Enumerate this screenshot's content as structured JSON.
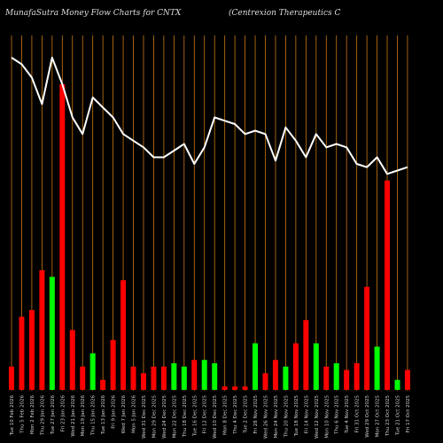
{
  "header": {
    "title_left": "MunafaSutra  Money Flow  Charts for CNTX",
    "title_right": "(Centrexion  Therapeutics C"
  },
  "chart_data": {
    "type": "bar",
    "title": "MunafaSutra  Money Flow  Charts for CNTX",
    "categories": [
      "Tue 10 Feb 2026",
      "Thu 5 Feb 2026",
      "Mon 2 Feb 2026",
      "Thu 29 Jan 2026",
      "Tue 27 Jan 2026",
      "Fri 23 Jan 2026",
      "Wed 21 Jan 2026",
      "Mon 19 Jan 2026",
      "Thu 15 Jan 2026",
      "Tue 13 Jan 2026",
      "Fri 9 Jan 2026",
      "Wed 7 Jan 2026",
      "Mon 5 Jan 2026",
      "Wed 31 Dec 2025",
      "Mon 29 Dec 2025",
      "Wed 24 Dec 2025",
      "Mon 22 Dec 2025",
      "Thu 18 Dec 2025",
      "Tue 16 Dec 2025",
      "Fri 12 Dec 2025",
      "Wed 10 Dec 2025",
      "Mon 8 Dec 2025",
      "Thu 4 Dec 2025",
      "Tue 2 Dec 2025",
      "Fri 28 Nov 2025",
      "Wed 26 Nov 2025",
      "Mon 24 Nov 2025",
      "Thu 20 Nov 2025",
      "Tue 18 Nov 2025",
      "Fri 14 Nov 2025",
      "Wed 12 Nov 2025",
      "Mon 10 Nov 2025",
      "Thu 6 Nov 2025",
      "Tue 4 Nov 2025",
      "Fri 31 Oct 2025",
      "Wed 29 Oct 2025",
      "Mon 27 Oct 2025",
      "Thu 23 Oct 2025",
      "Tue 21 Oct 2025",
      "Fri 17 Oct 2025"
    ],
    "series": [
      {
        "values": [
          7,
          22,
          24,
          36,
          34,
          92,
          18,
          7,
          11,
          3,
          15,
          33,
          7,
          5,
          7,
          7,
          8,
          7,
          9,
          9,
          8,
          1,
          1,
          1,
          14,
          5,
          9,
          7,
          14,
          21,
          14,
          7,
          8,
          6,
          8,
          31,
          13,
          63,
          3,
          6
        ],
        "colors": [
          "red",
          "red",
          "red",
          "red",
          "green",
          "red",
          "red",
          "red",
          "green",
          "red",
          "red",
          "red",
          "red",
          "red",
          "red",
          "red",
          "green",
          "green",
          "red",
          "green",
          "green",
          "red",
          "red",
          "red",
          "green",
          "red",
          "red",
          "green",
          "red",
          "red",
          "green",
          "red",
          "green",
          "red",
          "red",
          "red",
          "green",
          "red",
          "green",
          "red"
        ]
      },
      {
        "values": [
          100,
          98,
          94,
          86,
          100,
          92,
          82,
          77,
          88,
          85,
          82,
          77,
          75,
          73,
          70,
          70,
          72,
          74,
          68,
          73,
          82,
          81,
          80,
          77,
          78,
          77,
          69,
          79,
          75,
          70,
          77,
          73,
          74,
          73,
          68,
          67,
          70,
          65,
          66,
          67
        ]
      }
    ],
    "ylim": [
      0,
      100
    ],
    "colors": {
      "red": "#ff0000",
      "green": "#00ff00",
      "line": "#ffffff",
      "grid": "#c87a14",
      "bg": "#000000"
    }
  }
}
